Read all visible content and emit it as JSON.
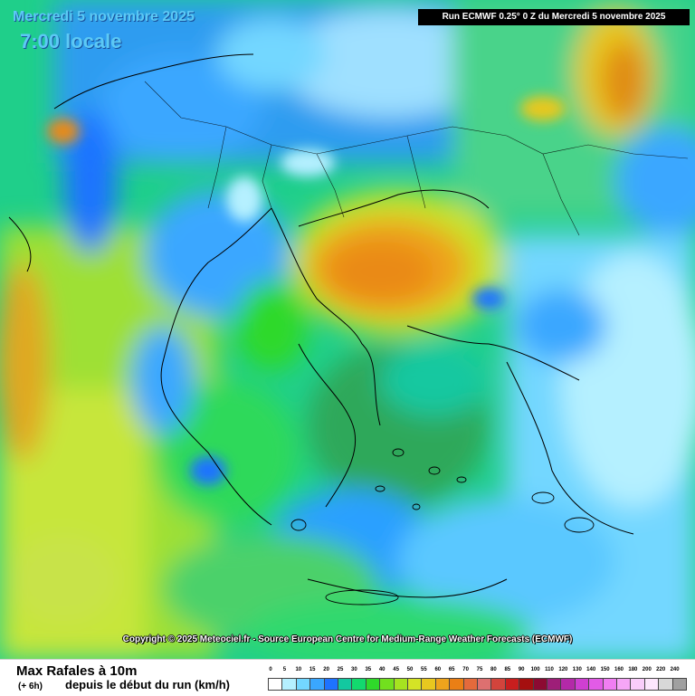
{
  "header": {
    "date": "Mercredi 5 novembre 2025",
    "time": "7:00 locale",
    "run": "Run ECMWF 0.25° 0 Z du Mercredi 5 novembre 2025"
  },
  "copyright": "Copyright © 2025 Meteociel.fr - Source European Centre for Medium-Range Weather Forecasts (ECMWF)",
  "footer": {
    "title": "Max Rafales à 10m",
    "step": "(+ 6h)",
    "subtitle": "depuis le début du run (km/h)"
  },
  "legend": {
    "labels": [
      "0",
      "5",
      "10",
      "15",
      "20",
      "25",
      "30",
      "35",
      "40",
      "45",
      "50",
      "55",
      "60",
      "65",
      "70",
      "75",
      "80",
      "85",
      "90",
      "100",
      "110",
      "120",
      "130",
      "140",
      "150",
      "160",
      "180",
      "200",
      "220",
      "240"
    ],
    "colors": [
      "#ffffff",
      "#b5f0ff",
      "#73d7ff",
      "#3aa7ff",
      "#1e73ff",
      "#13c8a0",
      "#12d96e",
      "#2fd92a",
      "#72e01e",
      "#a6e320",
      "#d4e326",
      "#e8c81f",
      "#eea41c",
      "#ea7f15",
      "#e46a3c",
      "#dd7070",
      "#d2443c",
      "#c81e1e",
      "#a50f0f",
      "#8c0a32",
      "#9e1e78",
      "#b429a8",
      "#cf3fd2",
      "#e25be6",
      "#f07ef2",
      "#f6a6f7",
      "#f9cdfa",
      "#fce6fc",
      "#d8d8d8",
      "#a0a0a0"
    ]
  }
}
